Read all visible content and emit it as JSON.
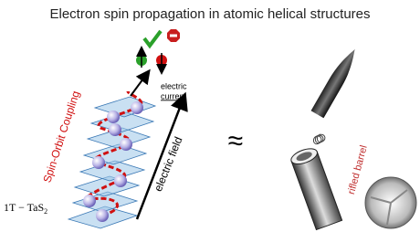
{
  "title": "Electron spin propagation in atomic helical structures",
  "labels": {
    "spin_orbit": "Spin-Orbit Coupling",
    "electric_current": [
      "electric",
      "current"
    ],
    "electric_field": "electric field",
    "approx": "≈",
    "rifled_barrel": "rifled barrel",
    "material": {
      "base": "1T − TaS",
      "subscript": "2"
    }
  }
}
